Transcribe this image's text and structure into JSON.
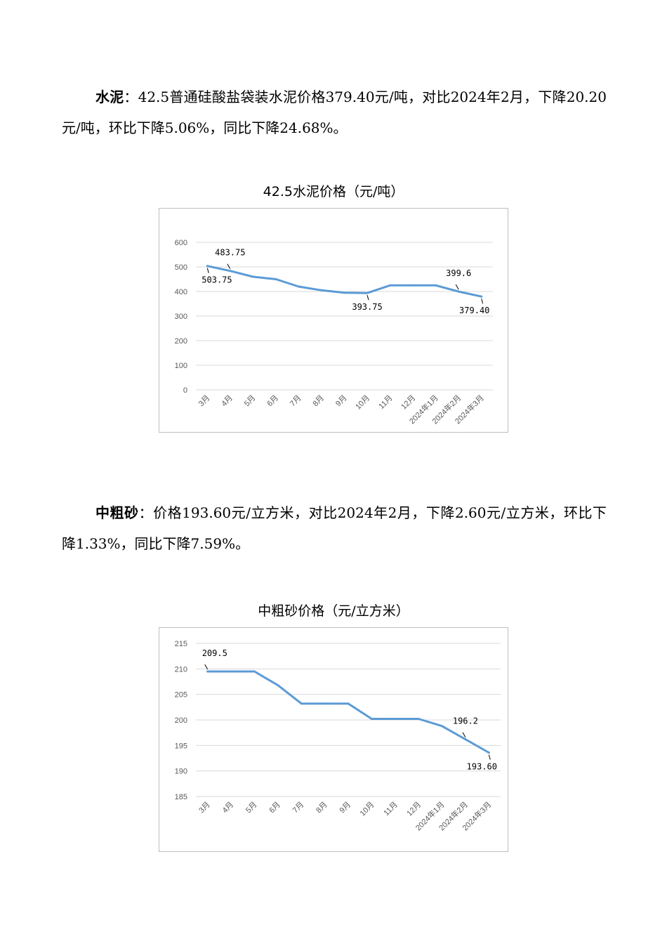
{
  "paragraphs": [
    {
      "lead": "水泥",
      "text": "：42.5普通硅酸盐袋装水泥价格379.40元/吨，对比2024年2月，下降20.20元/吨，环比下降5.06%，同比下降24.68%。"
    },
    {
      "lead": "中粗砂",
      "text": "：价格193.60元/立方米，对比2024年2月，下降2.60元/立方米，环比下降1.33%，同比下降7.59%。"
    }
  ],
  "chart_data": [
    {
      "type": "line",
      "title": "42.5水泥价格（元/吨）",
      "categories": [
        "3月",
        "4月",
        "5月",
        "6月",
        "7月",
        "8月",
        "9月",
        "10月",
        "11月",
        "12月",
        "2024年1月",
        "2024年2月",
        "2024年3月"
      ],
      "values": [
        503.75,
        483.75,
        460,
        450,
        420,
        405,
        395,
        393.75,
        425,
        425,
        425,
        399.6,
        379.4
      ],
      "ylim": [
        0,
        600
      ],
      "yticks": [
        0,
        100,
        200,
        300,
        400,
        500,
        600
      ],
      "grid": true,
      "line_color": "#5b9bd5",
      "data_labels": [
        {
          "index": 0,
          "text": "503.75",
          "position": "below"
        },
        {
          "index": 1,
          "text": "483.75",
          "position": "above"
        },
        {
          "index": 7,
          "text": "393.75",
          "position": "below"
        },
        {
          "index": 11,
          "text": "399.6",
          "position": "above"
        },
        {
          "index": 12,
          "text": "379.40",
          "position": "below"
        }
      ]
    },
    {
      "type": "line",
      "title": "中粗砂价格（元/立方米）",
      "categories": [
        "3月",
        "4月",
        "5月",
        "6月",
        "7月",
        "8月",
        "9月",
        "10月",
        "11月",
        "12月",
        "2024年1月",
        "2024年2月",
        "2024年3月"
      ],
      "values": [
        209.5,
        209.5,
        209.5,
        206.8,
        203.2,
        203.2,
        203.2,
        200.2,
        200.2,
        200.2,
        198.8,
        196.2,
        193.6
      ],
      "ylim": [
        185,
        215
      ],
      "yticks": [
        185,
        190,
        195,
        200,
        205,
        210,
        215
      ],
      "grid": true,
      "line_color": "#5b9bd5",
      "data_labels": [
        {
          "index": 0,
          "text": "209.5",
          "position": "above"
        },
        {
          "index": 11,
          "text": "196.2",
          "position": "above"
        },
        {
          "index": 12,
          "text": "193.60",
          "position": "below"
        }
      ]
    }
  ]
}
